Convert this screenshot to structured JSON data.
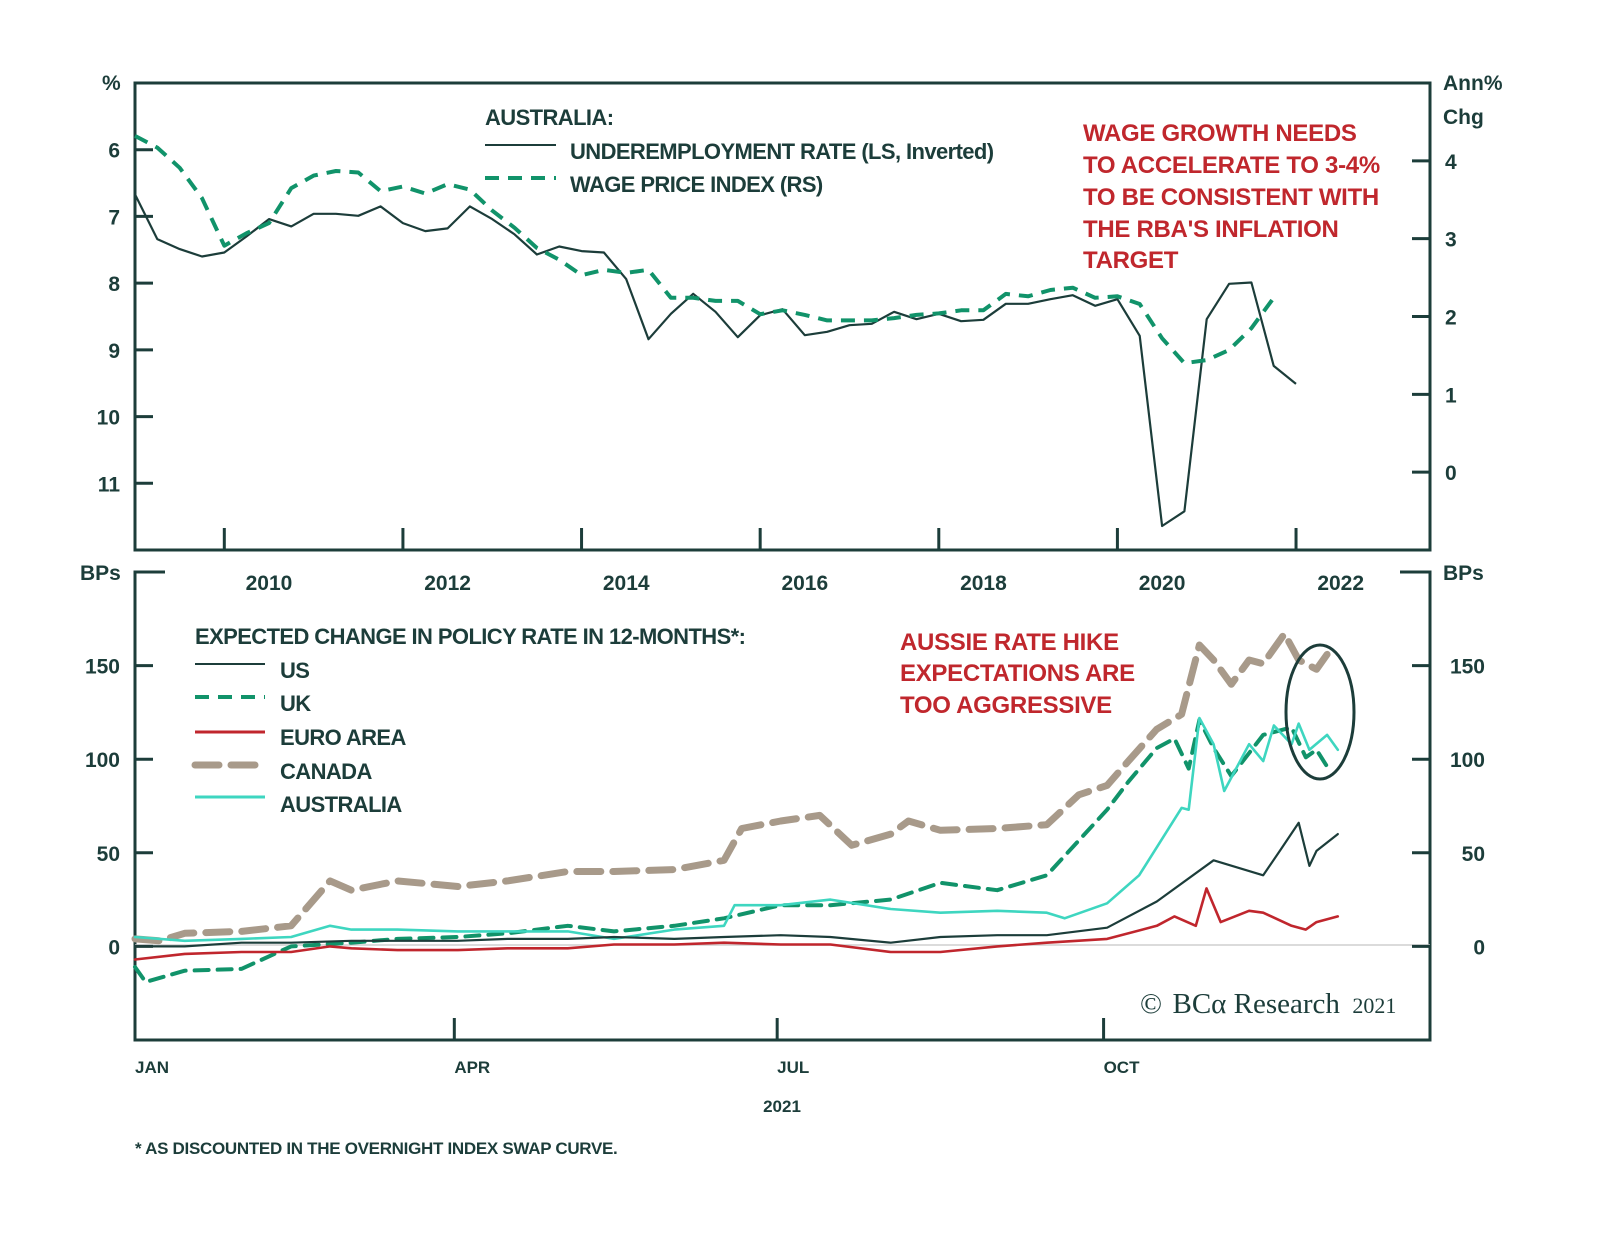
{
  "chart_data": [
    {
      "type": "line",
      "title": "AUSTRALIA:",
      "left_axis_unit": "%",
      "right_axis_unit": [
        "Ann%",
        "Chg"
      ],
      "x_tick_labels": [
        "2010",
        "2012",
        "2014",
        "2016",
        "2018",
        "2020",
        "2022"
      ],
      "xlim": [
        2009.0,
        2023.5
      ],
      "left_ylim": [
        5,
        12
      ],
      "left_inverted": true,
      "left_ticks": [
        "6",
        "7",
        "8",
        "9",
        "10",
        "11"
      ],
      "right_ylim": [
        -1,
        5
      ],
      "right_ticks": [
        "4",
        "3",
        "2",
        "1",
        "0"
      ],
      "legend_placement": "top-center",
      "annotation": [
        "WAGE GROWTH NEEDS",
        "TO ACCELERATE TO 3-4%",
        "TO BE CONSISTENT WITH",
        "THE RBA'S INFLATION",
        "TARGET"
      ],
      "series": [
        {
          "name": "UNDEREMPLOYMENT RATE (LS, Inverted)",
          "axis": "left",
          "style": "solid",
          "color": "#1c3d3a",
          "x_start": 2009.0,
          "x_step": 0.25,
          "values": [
            6.67,
            7.34,
            7.49,
            7.6,
            7.54,
            7.3,
            7.04,
            7.15,
            6.96,
            6.96,
            6.99,
            6.85,
            7.1,
            7.22,
            7.18,
            6.85,
            7.04,
            7.27,
            7.57,
            7.45,
            7.52,
            7.54,
            7.94,
            8.84,
            8.46,
            8.16,
            8.43,
            8.81,
            8.48,
            8.39,
            8.78,
            8.73,
            8.63,
            8.61,
            8.43,
            8.54,
            8.46,
            8.57,
            8.55,
            8.31,
            8.31,
            8.24,
            8.18,
            8.34,
            8.24,
            8.79,
            11.64,
            11.42,
            8.54,
            8.01,
            7.99,
            9.24,
            9.51
          ]
        },
        {
          "name": "WAGE PRICE INDEX (RS)",
          "axis": "right",
          "style": "dashed",
          "color": "#11936a",
          "x_start": 2009.0,
          "x_step": 0.25,
          "values": [
            4.32,
            4.17,
            3.91,
            3.52,
            2.91,
            3.07,
            3.2,
            3.65,
            3.81,
            3.87,
            3.85,
            3.61,
            3.67,
            3.58,
            3.7,
            3.63,
            3.36,
            3.14,
            2.88,
            2.73,
            2.53,
            2.6,
            2.56,
            2.6,
            2.24,
            2.24,
            2.2,
            2.2,
            2.03,
            2.08,
            2.02,
            1.95,
            1.95,
            1.95,
            1.98,
            2.02,
            2.04,
            2.08,
            2.08,
            2.29,
            2.26,
            2.34,
            2.37,
            2.24,
            2.26,
            2.16,
            1.72,
            1.4,
            1.44,
            1.57,
            1.85,
            2.24
          ]
        }
      ]
    },
    {
      "type": "line",
      "title": "EXPECTED CHANGE IN POLICY RATE IN 12-MONTHS*:",
      "y_unit": "BPs",
      "x_tick_labels": [
        "JAN",
        "APR",
        "JUL",
        "OCT"
      ],
      "x_axis_label": "2021",
      "xlim": [
        "2021-01-01",
        "2021-12-31"
      ],
      "ylim": [
        -50,
        200
      ],
      "y_ticks": [
        "0",
        "50",
        "100",
        "150"
      ],
      "legend_placement": "top-left",
      "annotation": [
        "AUSSIE RATE HIKE",
        "EXPECTATIONS ARE",
        "TOO AGGRESSIVE"
      ],
      "series": [
        {
          "name": "US",
          "style": "solid",
          "color": "#1c3d3a",
          "x": [
            "2021-01-01",
            "2021-01-15",
            "2021-01-31",
            "2021-02-14",
            "2021-03-03",
            "2021-03-16",
            "2021-04-02",
            "2021-04-16",
            "2021-05-03",
            "2021-05-16",
            "2021-06-02",
            "2021-06-16",
            "2021-07-02",
            "2021-07-16",
            "2021-08-02",
            "2021-08-16",
            "2021-09-01",
            "2021-09-15",
            "2021-10-02",
            "2021-10-16",
            "2021-11-01",
            "2021-11-15",
            "2021-11-20",
            "2021-11-25",
            "2021-11-28",
            "2021-11-30",
            "2021-12-06"
          ],
          "values": [
            0,
            0,
            2,
            2,
            3,
            3,
            3,
            4,
            4,
            5,
            4,
            5,
            6,
            5,
            2,
            5,
            6,
            6,
            10,
            24,
            46,
            38,
            52,
            66,
            43,
            51,
            60
          ]
        },
        {
          "name": "UK",
          "style": "dashed",
          "color": "#11936a",
          "x": [
            "2021-01-01",
            "2021-01-04",
            "2021-01-15",
            "2021-01-31",
            "2021-02-14",
            "2021-03-03",
            "2021-03-16",
            "2021-04-02",
            "2021-04-16",
            "2021-05-03",
            "2021-05-16",
            "2021-06-02",
            "2021-06-16",
            "2021-07-02",
            "2021-07-16",
            "2021-08-02",
            "2021-08-16",
            "2021-09-01",
            "2021-09-15",
            "2021-10-02",
            "2021-10-08",
            "2021-10-16",
            "2021-10-21",
            "2021-10-25",
            "2021-10-28",
            "2021-11-01",
            "2021-11-06",
            "2021-11-15",
            "2021-11-23",
            "2021-11-27",
            "2021-11-30",
            "2021-12-04"
          ],
          "values": [
            -11,
            -19,
            -13,
            -12,
            0,
            2,
            4,
            5,
            7,
            11,
            8,
            11,
            15,
            22,
            22,
            25,
            34,
            30,
            38,
            73,
            88,
            106,
            111,
            95,
            121,
            106,
            91,
            113,
            117,
            101,
            105,
            93
          ]
        },
        {
          "name": "EURO AREA",
          "style": "solid",
          "color": "#c0262d",
          "x": [
            "2021-01-01",
            "2021-01-15",
            "2021-01-31",
            "2021-02-14",
            "2021-02-25",
            "2021-03-03",
            "2021-03-16",
            "2021-04-02",
            "2021-04-16",
            "2021-05-03",
            "2021-05-16",
            "2021-06-02",
            "2021-06-16",
            "2021-07-02",
            "2021-07-16",
            "2021-08-02",
            "2021-08-16",
            "2021-09-01",
            "2021-09-15",
            "2021-10-02",
            "2021-10-16",
            "2021-10-21",
            "2021-10-27",
            "2021-10-30",
            "2021-11-03",
            "2021-11-11",
            "2021-11-15",
            "2021-11-23",
            "2021-11-27",
            "2021-11-30",
            "2021-12-06"
          ],
          "values": [
            -7,
            -4,
            -3,
            -3,
            0,
            -1,
            -2,
            -2,
            -1,
            -1,
            1,
            1,
            2,
            1,
            1,
            -3,
            -3,
            0,
            2,
            4,
            11,
            16,
            11,
            31,
            13,
            19,
            18,
            11,
            9,
            13,
            16
          ]
        },
        {
          "name": "CANADA",
          "style": "dashed",
          "color": "#a89a8a",
          "x": [
            "2021-01-01",
            "2021-01-08",
            "2021-01-15",
            "2021-01-31",
            "2021-02-14",
            "2021-02-25",
            "2021-03-03",
            "2021-03-16",
            "2021-04-02",
            "2021-04-16",
            "2021-05-03",
            "2021-05-16",
            "2021-06-02",
            "2021-06-16",
            "2021-06-21",
            "2021-07-02",
            "2021-07-13",
            "2021-07-22",
            "2021-08-02",
            "2021-08-07",
            "2021-08-16",
            "2021-09-01",
            "2021-09-15",
            "2021-09-24",
            "2021-10-02",
            "2021-10-08",
            "2021-10-16",
            "2021-10-23",
            "2021-10-28",
            "2021-11-01",
            "2021-11-06",
            "2021-11-11",
            "2021-11-15",
            "2021-11-21",
            "2021-11-25",
            "2021-11-30",
            "2021-12-03"
          ],
          "values": [
            4,
            3,
            7,
            8,
            11,
            35,
            30,
            35,
            32,
            35,
            40,
            40,
            41,
            46,
            63,
            67,
            70,
            54,
            60,
            67,
            62,
            63,
            65,
            81,
            86,
            99,
            116,
            124,
            161,
            153,
            140,
            153,
            151,
            167,
            153,
            148,
            156
          ]
        },
        {
          "name": "AUSTRALIA",
          "style": "solid",
          "color": "#3ed6c0",
          "x": [
            "2021-01-01",
            "2021-01-15",
            "2021-01-31",
            "2021-02-14",
            "2021-02-25",
            "2021-03-03",
            "2021-03-16",
            "2021-04-02",
            "2021-04-16",
            "2021-05-03",
            "2021-05-16",
            "2021-06-02",
            "2021-06-16",
            "2021-06-19",
            "2021-07-02",
            "2021-07-16",
            "2021-08-02",
            "2021-08-16",
            "2021-09-01",
            "2021-09-15",
            "2021-09-20",
            "2021-10-02",
            "2021-10-11",
            "2021-10-17",
            "2021-10-23",
            "2021-10-25",
            "2021-10-28",
            "2021-11-01",
            "2021-11-04",
            "2021-11-11",
            "2021-11-15",
            "2021-11-18",
            "2021-11-23",
            "2021-11-25",
            "2021-11-28",
            "2021-12-03",
            "2021-12-06"
          ],
          "values": [
            5,
            3,
            4,
            5,
            11,
            9,
            9,
            8,
            8,
            8,
            4,
            9,
            11,
            22,
            22,
            25,
            20,
            18,
            19,
            18,
            15,
            23,
            38,
            56,
            74,
            73,
            122,
            108,
            83,
            108,
            99,
            118,
            108,
            119,
            105,
            113,
            105
          ]
        }
      ]
    }
  ],
  "copyright": {
    "symbol": "©",
    "brand": "BCα Research",
    "year": "2021"
  },
  "footnote": "* AS DISCOUNTED IN THE OVERNIGHT INDEX SWAP CURVE."
}
